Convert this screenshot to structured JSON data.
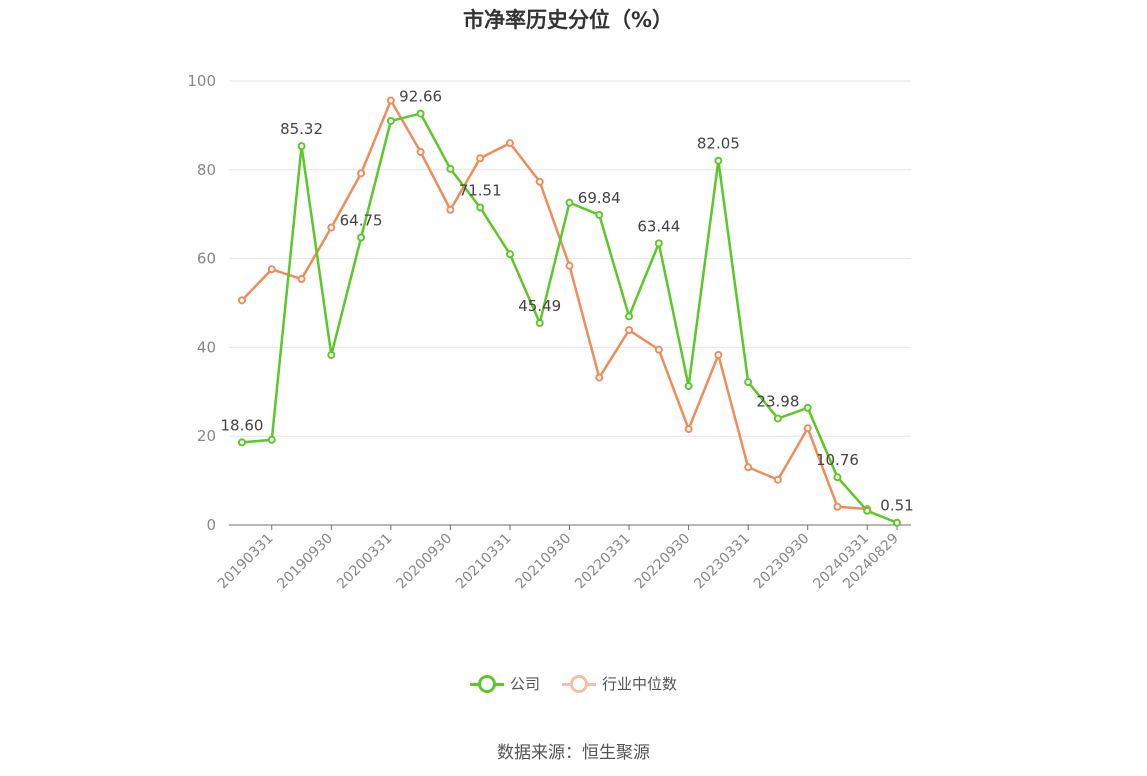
{
  "chart_data": {
    "type": "line",
    "title": "市净率历史分位（%）",
    "ylim": [
      0,
      100
    ],
    "yticks": [
      0,
      20,
      40,
      60,
      80,
      100
    ],
    "x_tick_labels": [
      "20190331",
      "20190930",
      "20200331",
      "20200930",
      "20210331",
      "20210930",
      "20220331",
      "20220930",
      "20230331",
      "20230930",
      "20240331",
      "20240829"
    ],
    "grid": true,
    "legend_position": "bottom",
    "series": [
      {
        "name": "公司",
        "color": "#5cc828",
        "values": [
          18.6,
          19.2,
          85.32,
          38.3,
          64.75,
          91.0,
          92.66,
          80.2,
          71.51,
          61.0,
          45.49,
          72.6,
          69.84,
          47.0,
          63.44,
          31.3,
          82.05,
          32.2,
          23.98,
          26.4,
          10.76,
          3.2,
          0.51
        ],
        "labels": [
          "18.60",
          "",
          "85.32",
          "",
          "64.75",
          "",
          "92.66",
          "",
          "71.51",
          "",
          "45.49",
          "",
          "69.84",
          "",
          "63.44",
          "",
          "82.05",
          "",
          "23.98",
          "",
          "10.76",
          "",
          "0.51"
        ]
      },
      {
        "name": "行业中位数",
        "color": "#f08c5a",
        "values": [
          50.6,
          57.6,
          55.4,
          67.0,
          79.2,
          95.6,
          84.0,
          71.0,
          82.6,
          86.0,
          77.3,
          58.4,
          33.2,
          43.9,
          39.5,
          21.6,
          38.3,
          13.0,
          10.2,
          21.8,
          4.1,
          3.6,
          null
        ]
      }
    ]
  },
  "source": "数据来源：恒生聚源"
}
